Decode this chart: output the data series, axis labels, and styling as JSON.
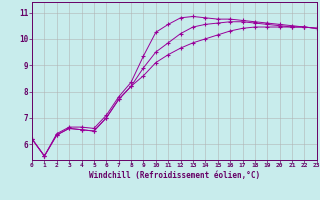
{
  "title": "",
  "xlabel": "Windchill (Refroidissement éolien,°C)",
  "ylabel": "",
  "bg_color": "#c8ecec",
  "line_color": "#990099",
  "grid_color": "#b0b0b0",
  "x_ticks": [
    0,
    1,
    2,
    3,
    4,
    5,
    6,
    7,
    8,
    9,
    10,
    11,
    12,
    13,
    14,
    15,
    16,
    17,
    18,
    19,
    20,
    21,
    22,
    23
  ],
  "y_ticks": [
    6,
    7,
    8,
    9,
    10,
    11
  ],
  "xlim": [
    0,
    23
  ],
  "ylim": [
    5.4,
    11.4
  ],
  "series": [
    [
      6.2,
      5.55,
      6.4,
      6.65,
      6.65,
      6.6,
      7.1,
      7.8,
      8.35,
      9.35,
      10.25,
      10.55,
      10.8,
      10.85,
      10.8,
      10.75,
      10.75,
      10.7,
      10.65,
      10.6,
      10.55,
      10.5,
      10.45,
      10.4
    ],
    [
      6.2,
      5.55,
      6.35,
      6.6,
      6.55,
      6.5,
      7.0,
      7.7,
      8.2,
      8.9,
      9.5,
      9.85,
      10.2,
      10.45,
      10.55,
      10.6,
      10.65,
      10.65,
      10.6,
      10.55,
      10.5,
      10.45,
      10.45,
      10.4
    ],
    [
      6.2,
      5.55,
      6.35,
      6.6,
      6.55,
      6.5,
      7.0,
      7.7,
      8.2,
      8.6,
      9.1,
      9.4,
      9.65,
      9.85,
      10.0,
      10.15,
      10.3,
      10.4,
      10.45,
      10.45,
      10.45,
      10.45,
      10.45,
      10.4
    ]
  ]
}
